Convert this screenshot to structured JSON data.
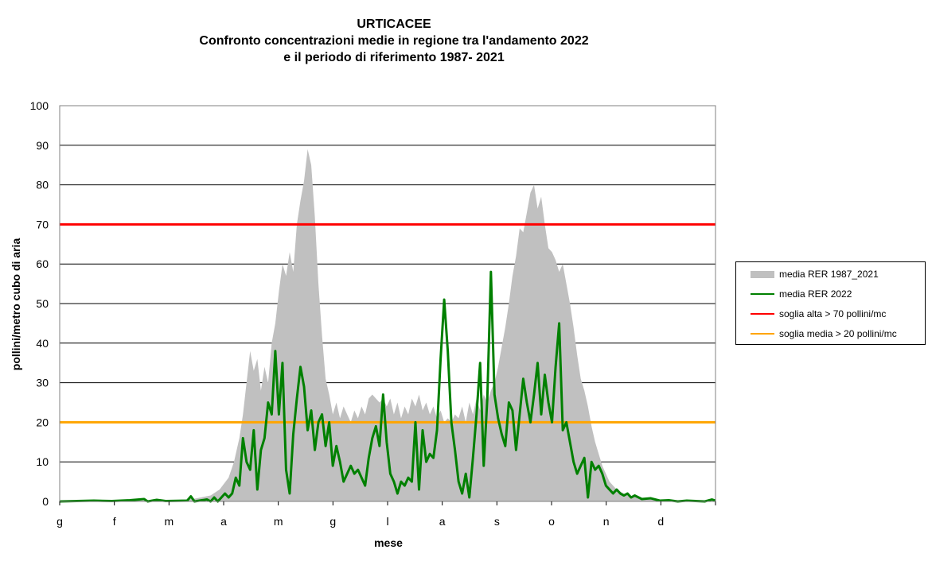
{
  "chart_data": {
    "type": "area",
    "title": "URTICACEE",
    "subtitle_lines": [
      "Confronto concentrazioni medie in regione tra l'andamento 2022",
      "e il periodo di riferimento 1987- 2021"
    ],
    "xlabel": "mese",
    "ylabel": "pollini/metro cubo di aria",
    "ylim": [
      0,
      100
    ],
    "y_ticks": [
      0,
      10,
      20,
      30,
      40,
      50,
      60,
      70,
      80,
      90,
      100
    ],
    "x_tick_labels": [
      "g",
      "f",
      "m",
      "a",
      "m",
      "g",
      "l",
      "a",
      "s",
      "o",
      "n",
      "d"
    ],
    "x_domain": [
      1,
      366
    ],
    "grid": true,
    "legend_position": "right",
    "series": [
      {
        "name": "media RER 1987_2021",
        "kind": "area",
        "color": "#c0c0c0",
        "points": [
          [
            1,
            0.1
          ],
          [
            60,
            0.2
          ],
          [
            75,
            0.6
          ],
          [
            85,
            1.5
          ],
          [
            90,
            3
          ],
          [
            95,
            6
          ],
          [
            98,
            10
          ],
          [
            101,
            16
          ],
          [
            103,
            22
          ],
          [
            105,
            30
          ],
          [
            107,
            38
          ],
          [
            109,
            33
          ],
          [
            111,
            36
          ],
          [
            113,
            28
          ],
          [
            115,
            34
          ],
          [
            117,
            30
          ],
          [
            119,
            40
          ],
          [
            121,
            45
          ],
          [
            123,
            53
          ],
          [
            125,
            60
          ],
          [
            127,
            57
          ],
          [
            129,
            63
          ],
          [
            131,
            58
          ],
          [
            133,
            70
          ],
          [
            135,
            76
          ],
          [
            137,
            81
          ],
          [
            139,
            89
          ],
          [
            141,
            85
          ],
          [
            143,
            72
          ],
          [
            145,
            55
          ],
          [
            147,
            42
          ],
          [
            149,
            31
          ],
          [
            151,
            27
          ],
          [
            153,
            22
          ],
          [
            155,
            25
          ],
          [
            157,
            21
          ],
          [
            159,
            24
          ],
          [
            161,
            22
          ],
          [
            163,
            20
          ],
          [
            165,
            23
          ],
          [
            167,
            21
          ],
          [
            169,
            24
          ],
          [
            171,
            22
          ],
          [
            173,
            26
          ],
          [
            175,
            27
          ],
          [
            177,
            26
          ],
          [
            179,
            25
          ],
          [
            181,
            26
          ],
          [
            183,
            24
          ],
          [
            185,
            26
          ],
          [
            187,
            22
          ],
          [
            189,
            25
          ],
          [
            191,
            21
          ],
          [
            193,
            24
          ],
          [
            195,
            22
          ],
          [
            197,
            26
          ],
          [
            199,
            24
          ],
          [
            201,
            27
          ],
          [
            203,
            23
          ],
          [
            205,
            25
          ],
          [
            207,
            22
          ],
          [
            209,
            24
          ],
          [
            211,
            21
          ],
          [
            213,
            23
          ],
          [
            215,
            20
          ],
          [
            217,
            21
          ],
          [
            219,
            20
          ],
          [
            221,
            22
          ],
          [
            223,
            21
          ],
          [
            225,
            24
          ],
          [
            227,
            20
          ],
          [
            229,
            25
          ],
          [
            231,
            22
          ],
          [
            233,
            26
          ],
          [
            235,
            23
          ],
          [
            237,
            27
          ],
          [
            239,
            25
          ],
          [
            241,
            28
          ],
          [
            243,
            30
          ],
          [
            245,
            34
          ],
          [
            247,
            39
          ],
          [
            249,
            44
          ],
          [
            251,
            50
          ],
          [
            253,
            57
          ],
          [
            255,
            62
          ],
          [
            257,
            69
          ],
          [
            259,
            68
          ],
          [
            261,
            73
          ],
          [
            263,
            78
          ],
          [
            265,
            80
          ],
          [
            267,
            74
          ],
          [
            269,
            77
          ],
          [
            271,
            70
          ],
          [
            273,
            64
          ],
          [
            275,
            63
          ],
          [
            277,
            61
          ],
          [
            279,
            58
          ],
          [
            281,
            60
          ],
          [
            283,
            55
          ],
          [
            285,
            50
          ],
          [
            287,
            44
          ],
          [
            289,
            37
          ],
          [
            291,
            31
          ],
          [
            293,
            28
          ],
          [
            295,
            24
          ],
          [
            297,
            19
          ],
          [
            299,
            15
          ],
          [
            301,
            12
          ],
          [
            303,
            9
          ],
          [
            305,
            7
          ],
          [
            307,
            5
          ],
          [
            309,
            4
          ],
          [
            311,
            3
          ],
          [
            315,
            2
          ],
          [
            320,
            1.2
          ],
          [
            330,
            0.6
          ],
          [
            345,
            0.3
          ],
          [
            366,
            0.1
          ]
        ]
      },
      {
        "name": "media RER 2022",
        "kind": "line",
        "color": "#008000",
        "points": [
          [
            1,
            0
          ],
          [
            20,
            0.2
          ],
          [
            30,
            0.1
          ],
          [
            40,
            0.3
          ],
          [
            48,
            0.6
          ],
          [
            50,
            0
          ],
          [
            55,
            0.4
          ],
          [
            60,
            0.1
          ],
          [
            72,
            0.2
          ],
          [
            74,
            1.3
          ],
          [
            76,
            0
          ],
          [
            83,
            0.5
          ],
          [
            85,
            0
          ],
          [
            87,
            1
          ],
          [
            89,
            0
          ],
          [
            93,
            2
          ],
          [
            95,
            1
          ],
          [
            97,
            2
          ],
          [
            99,
            6
          ],
          [
            101,
            4
          ],
          [
            103,
            16
          ],
          [
            105,
            10
          ],
          [
            107,
            8
          ],
          [
            109,
            18
          ],
          [
            111,
            3
          ],
          [
            113,
            13
          ],
          [
            115,
            16
          ],
          [
            117,
            25
          ],
          [
            119,
            22
          ],
          [
            121,
            38
          ],
          [
            123,
            22
          ],
          [
            125,
            35
          ],
          [
            127,
            8
          ],
          [
            129,
            2
          ],
          [
            131,
            17
          ],
          [
            133,
            26
          ],
          [
            135,
            34
          ],
          [
            137,
            29
          ],
          [
            139,
            18
          ],
          [
            141,
            23
          ],
          [
            143,
            13
          ],
          [
            145,
            20
          ],
          [
            147,
            22
          ],
          [
            149,
            14
          ],
          [
            151,
            20
          ],
          [
            153,
            9
          ],
          [
            155,
            14
          ],
          [
            157,
            10
          ],
          [
            159,
            5
          ],
          [
            161,
            7
          ],
          [
            163,
            9
          ],
          [
            165,
            7
          ],
          [
            167,
            8
          ],
          [
            169,
            6
          ],
          [
            171,
            4
          ],
          [
            173,
            11
          ],
          [
            175,
            16
          ],
          [
            177,
            19
          ],
          [
            179,
            14
          ],
          [
            181,
            27
          ],
          [
            183,
            15
          ],
          [
            185,
            7
          ],
          [
            187,
            5
          ],
          [
            189,
            2
          ],
          [
            191,
            5
          ],
          [
            193,
            4
          ],
          [
            195,
            6
          ],
          [
            197,
            5
          ],
          [
            199,
            20
          ],
          [
            201,
            3
          ],
          [
            203,
            18
          ],
          [
            205,
            10
          ],
          [
            207,
            12
          ],
          [
            209,
            11
          ],
          [
            211,
            18
          ],
          [
            213,
            36
          ],
          [
            215,
            51
          ],
          [
            217,
            38
          ],
          [
            219,
            20
          ],
          [
            221,
            13
          ],
          [
            223,
            5
          ],
          [
            225,
            2
          ],
          [
            227,
            7
          ],
          [
            229,
            1
          ],
          [
            231,
            11
          ],
          [
            233,
            22
          ],
          [
            235,
            35
          ],
          [
            237,
            9
          ],
          [
            239,
            26
          ],
          [
            241,
            58
          ],
          [
            243,
            27
          ],
          [
            245,
            21
          ],
          [
            247,
            17
          ],
          [
            249,
            14
          ],
          [
            251,
            25
          ],
          [
            253,
            23
          ],
          [
            255,
            13
          ],
          [
            257,
            22
          ],
          [
            259,
            31
          ],
          [
            261,
            25
          ],
          [
            263,
            20
          ],
          [
            265,
            27
          ],
          [
            267,
            35
          ],
          [
            269,
            22
          ],
          [
            271,
            32
          ],
          [
            273,
            25
          ],
          [
            275,
            20
          ],
          [
            277,
            34
          ],
          [
            279,
            45
          ],
          [
            281,
            18
          ],
          [
            283,
            20
          ],
          [
            285,
            15
          ],
          [
            287,
            10
          ],
          [
            289,
            7
          ],
          [
            291,
            9
          ],
          [
            293,
            11
          ],
          [
            295,
            1
          ],
          [
            297,
            10
          ],
          [
            299,
            8
          ],
          [
            301,
            9
          ],
          [
            303,
            7
          ],
          [
            305,
            4
          ],
          [
            307,
            3
          ],
          [
            309,
            2
          ],
          [
            311,
            3
          ],
          [
            313,
            2
          ],
          [
            315,
            1.5
          ],
          [
            317,
            2
          ],
          [
            319,
            1
          ],
          [
            321,
            1.5
          ],
          [
            325,
            0.6
          ],
          [
            330,
            0.8
          ],
          [
            335,
            0.2
          ],
          [
            340,
            0.3
          ],
          [
            345,
            0
          ],
          [
            350,
            0.2
          ],
          [
            360,
            0
          ],
          [
            364,
            0.5
          ],
          [
            366,
            0.2
          ]
        ]
      },
      {
        "name": "soglia alta > 70 pollini/mc",
        "kind": "hline",
        "value": 70,
        "color": "#ff0000"
      },
      {
        "name": "soglia media > 20 pollini/mc",
        "kind": "hline",
        "value": 20,
        "color": "#ffa500"
      }
    ]
  }
}
